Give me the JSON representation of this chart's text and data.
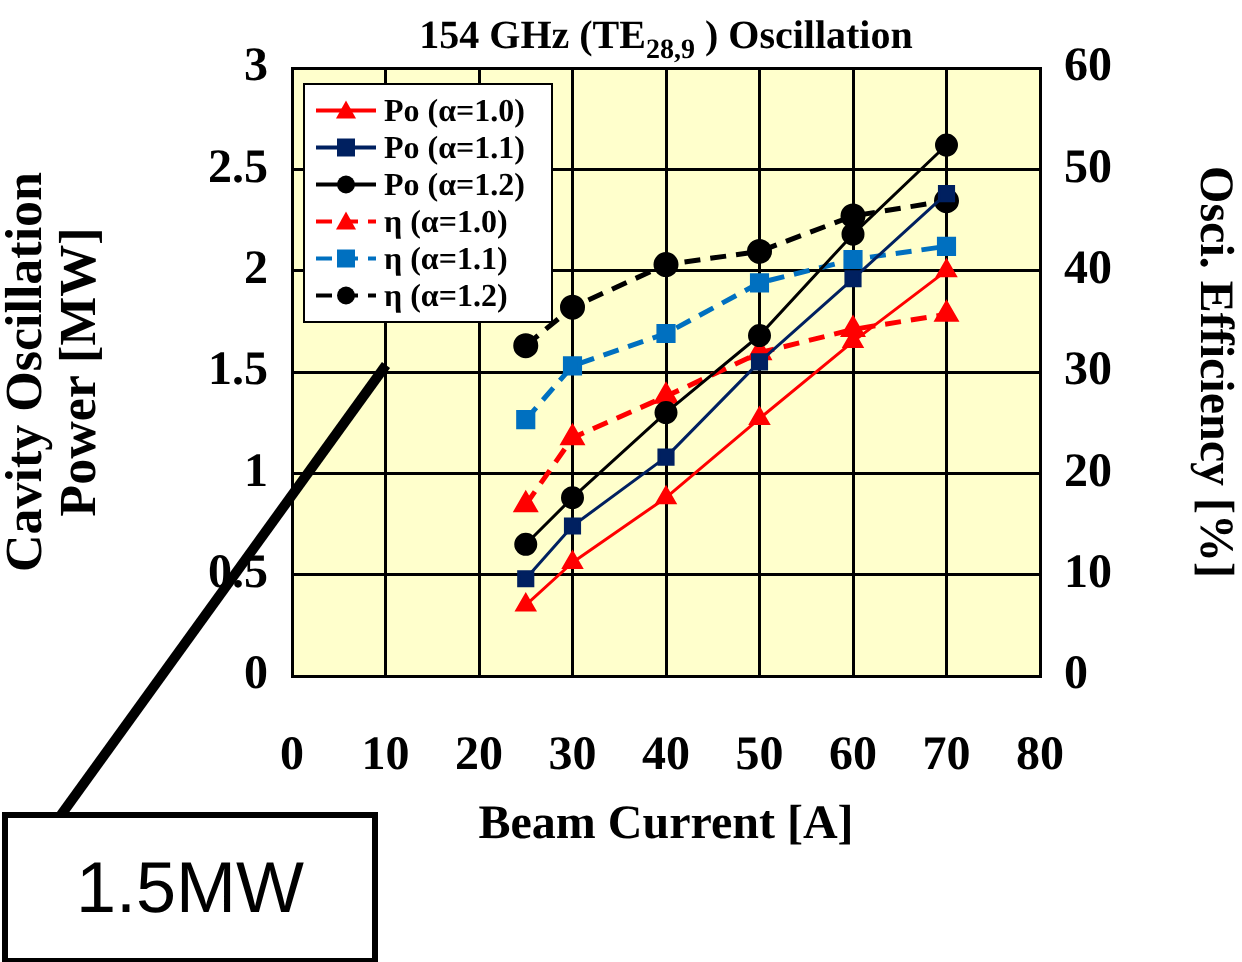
{
  "chart_data": {
    "type": "line",
    "title": "154 GHz (TE$_{28,9}$ ) Oscillation",
    "xlabel": "Beam Current [A]",
    "ylabel": "Cavity Oscillation Power [MW]",
    "y2label": "Osci. Efficiency [%]",
    "x": [
      25,
      30,
      40,
      50,
      60,
      70
    ],
    "series": [
      {
        "name": "Po (α=1.0)",
        "color": "#ff0000",
        "marker": "triangle",
        "line_style": "solid",
        "values": [
          0.35,
          0.56,
          0.88,
          1.27,
          1.65,
          2.0
        ]
      },
      {
        "name": "Po (α=1.1)",
        "color": "#002060",
        "marker": "square",
        "line_style": "solid",
        "values": [
          0.48,
          0.74,
          1.08,
          1.55,
          1.96,
          2.38
        ]
      },
      {
        "name": "Po (α=1.2)",
        "color": "#000000",
        "marker": "circle",
        "line_style": "solid",
        "values": [
          0.65,
          0.88,
          1.3,
          1.68,
          2.18,
          2.62
        ]
      },
      {
        "name": "η (α=1.0)",
        "color": "#ff0000",
        "marker": "triangle",
        "line_style": "dashed",
        "axis": "y2",
        "values": [
          16.9,
          23.5,
          27.6,
          31.9,
          34.2,
          35.7
        ]
      },
      {
        "name": "η (α=1.1)",
        "color": "#0070c0",
        "marker": "square",
        "line_style": "dashed",
        "axis": "y2",
        "values": [
          25.3,
          30.6,
          33.8,
          38.8,
          41.1,
          42.4
        ]
      },
      {
        "name": "η (α=1.2)",
        "color": "#000000",
        "marker": "circle",
        "line_style": "dashed",
        "axis": "y2",
        "values": [
          32.6,
          36.4,
          40.6,
          41.9,
          45.4,
          46.9
        ]
      }
    ],
    "xlim": [
      0,
      80
    ],
    "xticks": [
      0,
      10,
      20,
      30,
      40,
      50,
      60,
      70,
      80
    ],
    "ylim": [
      0,
      3
    ],
    "yticks": [
      0,
      0.5,
      1,
      1.5,
      2,
      2.5,
      3
    ],
    "y2lim": [
      0,
      60
    ],
    "y2ticks": [
      0,
      10,
      20,
      30,
      40,
      50,
      60
    ],
    "grid": true,
    "legend": "top left",
    "annotations": [
      "1.5MW"
    ]
  }
}
